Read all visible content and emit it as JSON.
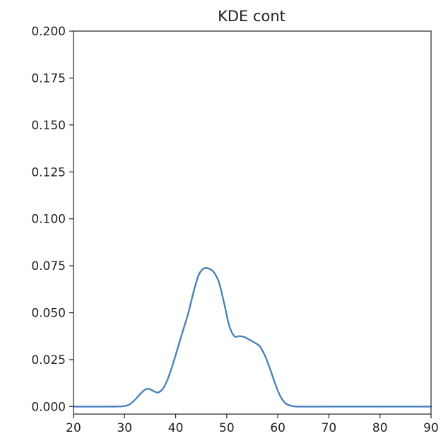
{
  "chart_data": {
    "type": "line",
    "title": "KDE cont",
    "xlabel": "",
    "ylabel": "",
    "xlim": [
      20,
      90
    ],
    "ylim": [
      -0.004,
      0.2
    ],
    "xticks": [
      20,
      30,
      40,
      50,
      60,
      70,
      80,
      90
    ],
    "yticks": [
      0.0,
      0.025,
      0.05,
      0.075,
      0.1,
      0.125,
      0.15,
      0.175,
      0.2
    ],
    "ytick_labels": [
      "0.000",
      "0.025",
      "0.050",
      "0.075",
      "0.100",
      "0.125",
      "0.150",
      "0.175",
      "0.200"
    ],
    "grid": false,
    "line_color": "#4a82bd",
    "series": [
      {
        "x": [
          20,
          28,
          30,
          31,
          32,
          33,
          34,
          34.7,
          35.5,
          36.5,
          37.5,
          38.5,
          39.5,
          40.5,
          41.5,
          42.5,
          43.5,
          44.5,
          45.5,
          46.5,
          47.5,
          48.5,
          49.5,
          50.5,
          51.5,
          52.5,
          53.5,
          54.5,
          55.5,
          56.5,
          57.5,
          58.5,
          59.5,
          60.5,
          61.5,
          62.5,
          64,
          70,
          80,
          90
        ],
        "y": [
          0.0,
          0.0,
          0.0003,
          0.0012,
          0.0035,
          0.0065,
          0.009,
          0.0095,
          0.0085,
          0.0075,
          0.0095,
          0.015,
          0.023,
          0.032,
          0.041,
          0.05,
          0.061,
          0.07,
          0.0735,
          0.0735,
          0.0715,
          0.066,
          0.055,
          0.043,
          0.0375,
          0.0375,
          0.037,
          0.0355,
          0.034,
          0.032,
          0.027,
          0.02,
          0.012,
          0.0055,
          0.0018,
          0.0005,
          0.0,
          0.0,
          0.0,
          0.0
        ]
      }
    ]
  }
}
